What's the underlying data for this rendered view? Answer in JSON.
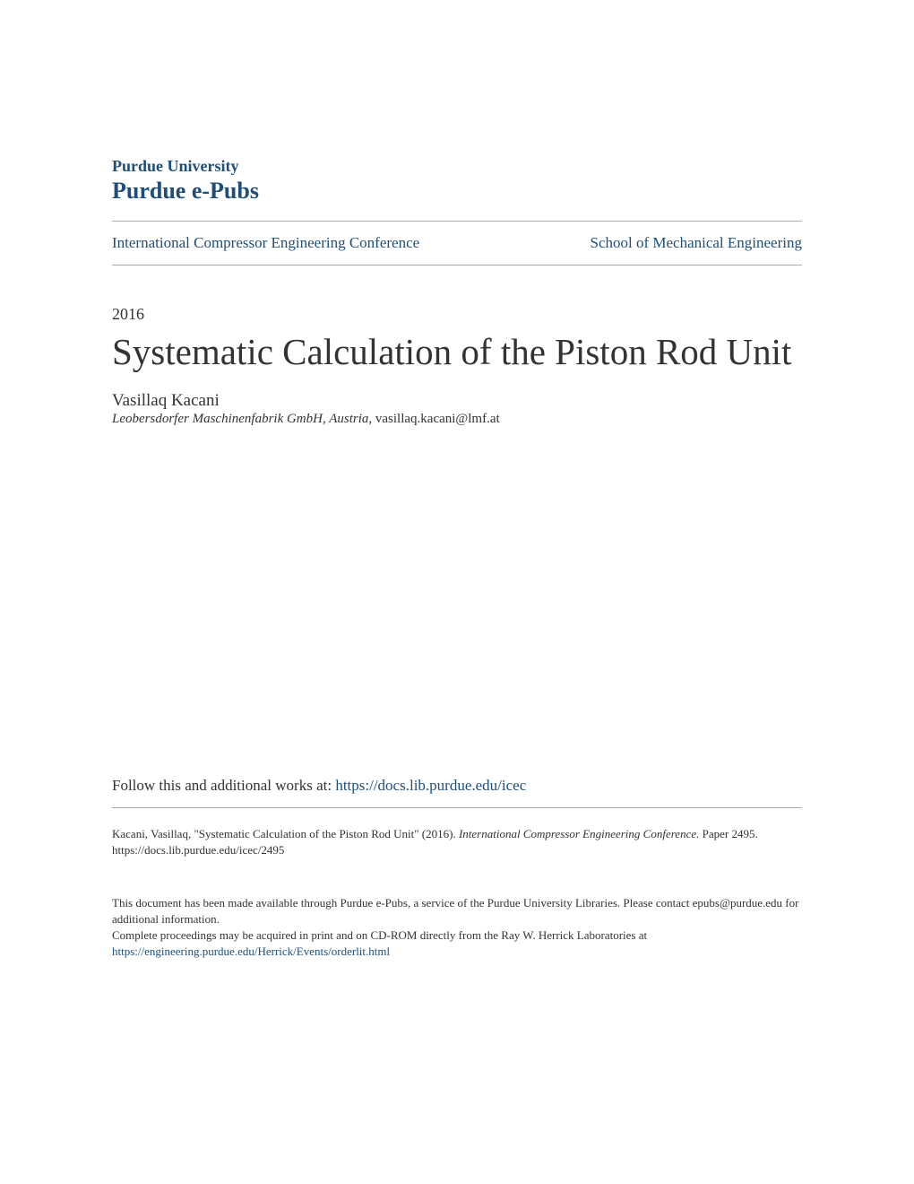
{
  "header": {
    "university": "Purdue University",
    "repository": "Purdue e-Pubs",
    "conference_link": "International Compressor Engineering Conference",
    "school_link": "School of Mechanical Engineering"
  },
  "meta": {
    "year": "2016",
    "title": "Systematic Calculation of the Piston Rod Unit",
    "author": "Vasillaq Kacani",
    "affiliation": "Leobersdorfer Maschinenfabrik GmbH, Austria",
    "email": ", vasillaq.kacani@lmf.at"
  },
  "follow": {
    "label": "Follow this and additional works at: ",
    "url": "https://docs.lib.purdue.edu/icec"
  },
  "citation": {
    "prefix": "Kacani, Vasillaq, \"Systematic Calculation of the Piston Rod Unit\" (2016). ",
    "conference": "International Compressor Engineering Conference.",
    "suffix": " Paper 2495.",
    "url": "https://docs.lib.purdue.edu/icec/2495"
  },
  "disclaimer": {
    "line1": "This document has been made available through Purdue e-Pubs, a service of the Purdue University Libraries. Please contact epubs@purdue.edu for additional information.",
    "line2_prefix": "Complete proceedings may be acquired in print and on CD-ROM directly from the Ray W. Herrick Laboratories at ",
    "line2_link": "https://engineering.purdue.edu/Herrick/Events/orderlit.html"
  },
  "colors": {
    "link_color": "#1f4e79",
    "text_color": "#333333",
    "divider_color": "#aaaaaa",
    "background": "#ffffff"
  }
}
